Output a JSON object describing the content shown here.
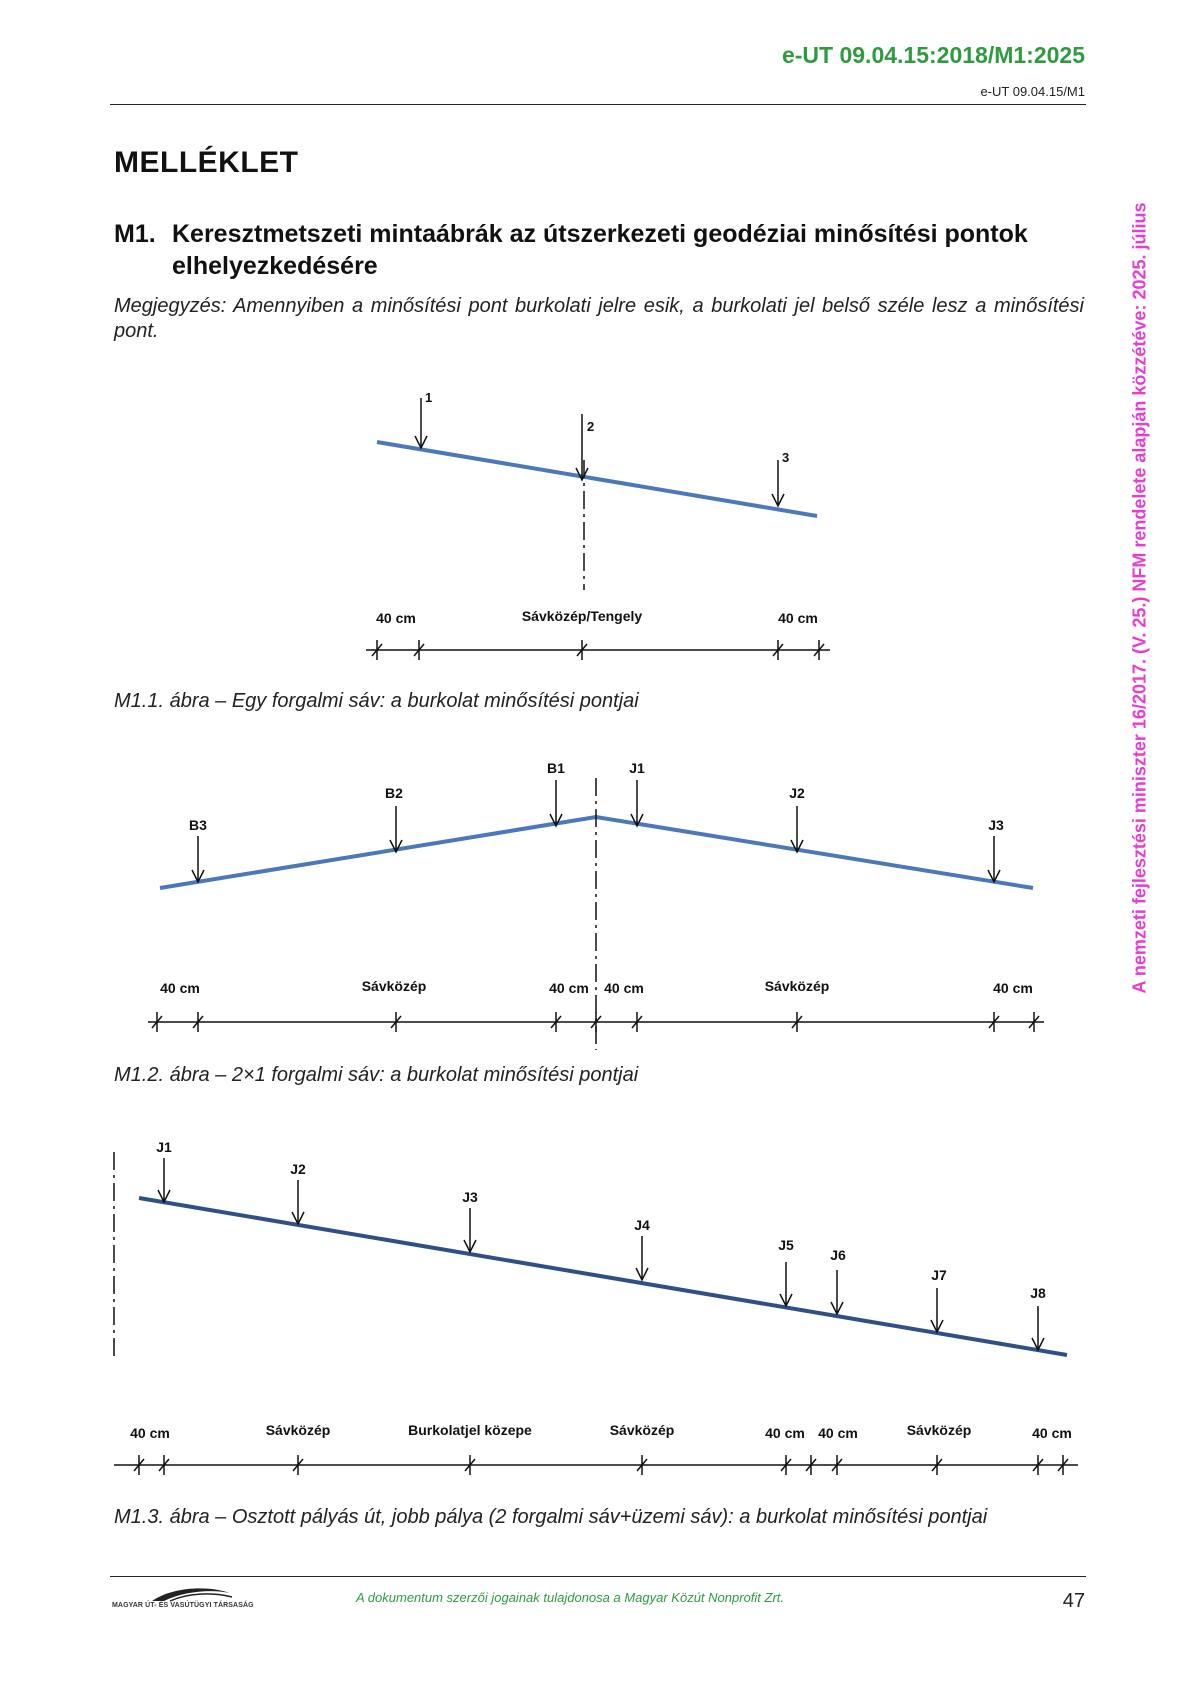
{
  "header": {
    "doc_code": "e-UT 09.04.15:2018/M1:2025",
    "doc_code_sub": "e-UT 09.04.15/M1"
  },
  "section_title": "MELLÉKLET",
  "subsection": {
    "number": "M1.",
    "title": "Keresztmetszeti mintaábrák az útszerkezeti geodéziai minősítési pontok elhelyezkedésére"
  },
  "note": "Megjegyzés: Amennyiben a minősítési pont burkolati jelre esik, a burkolati jel belső széle lesz a minősítési pont.",
  "figures": [
    {
      "caption": "M1.1. ábra – Egy forgalmi sáv: a burkolat minősítési pontjai",
      "points": [
        "1",
        "2",
        "3"
      ],
      "dims": [
        "40 cm",
        "Sávközép/Tengely",
        "40 cm"
      ]
    },
    {
      "caption": "M1.2. ábra – 2×1 forgalmi sáv: a burkolat minősítési pontjai",
      "points": [
        "B3",
        "B2",
        "B1",
        "J1",
        "J2",
        "J3"
      ],
      "dims": [
        "40 cm",
        "Sávközép",
        "40 cm",
        "40 cm",
        "Sávközép",
        "40 cm"
      ]
    },
    {
      "caption": "M1.3. ábra – Osztott pályás út, jobb pálya (2 forgalmi sáv+üzemi sáv): a burkolat minősítési pontjai",
      "points": [
        "J1",
        "J2",
        "J3",
        "J4",
        "J5",
        "J6",
        "J7",
        "J8"
      ],
      "dims": [
        "40 cm",
        "Sávközép",
        "Burkolatjel közepe",
        "Sávközép",
        "40 cm",
        "40 cm",
        "Sávközép",
        "40 cm"
      ]
    }
  ],
  "side_note": "A nemzeti fejlesztési miniszter 16/2017. (V. 25.) NFM rendelete alapján közzétéve: 2025. július",
  "footer": {
    "logo_text": "MAGYAR ÚT- ÉS VASÚTÜGYI TÁRSASÁG",
    "copyright": "A dokumentum szerzői jogainak tulajdonosa a Magyar Közút Nonprofit Zrt.",
    "page_number": "47"
  },
  "colors": {
    "accent_green": "#2e9c3e",
    "side_note_magenta": "#e63ccf",
    "road_blue": "#4a78b8",
    "road_dark_blue": "#2f4f86"
  }
}
